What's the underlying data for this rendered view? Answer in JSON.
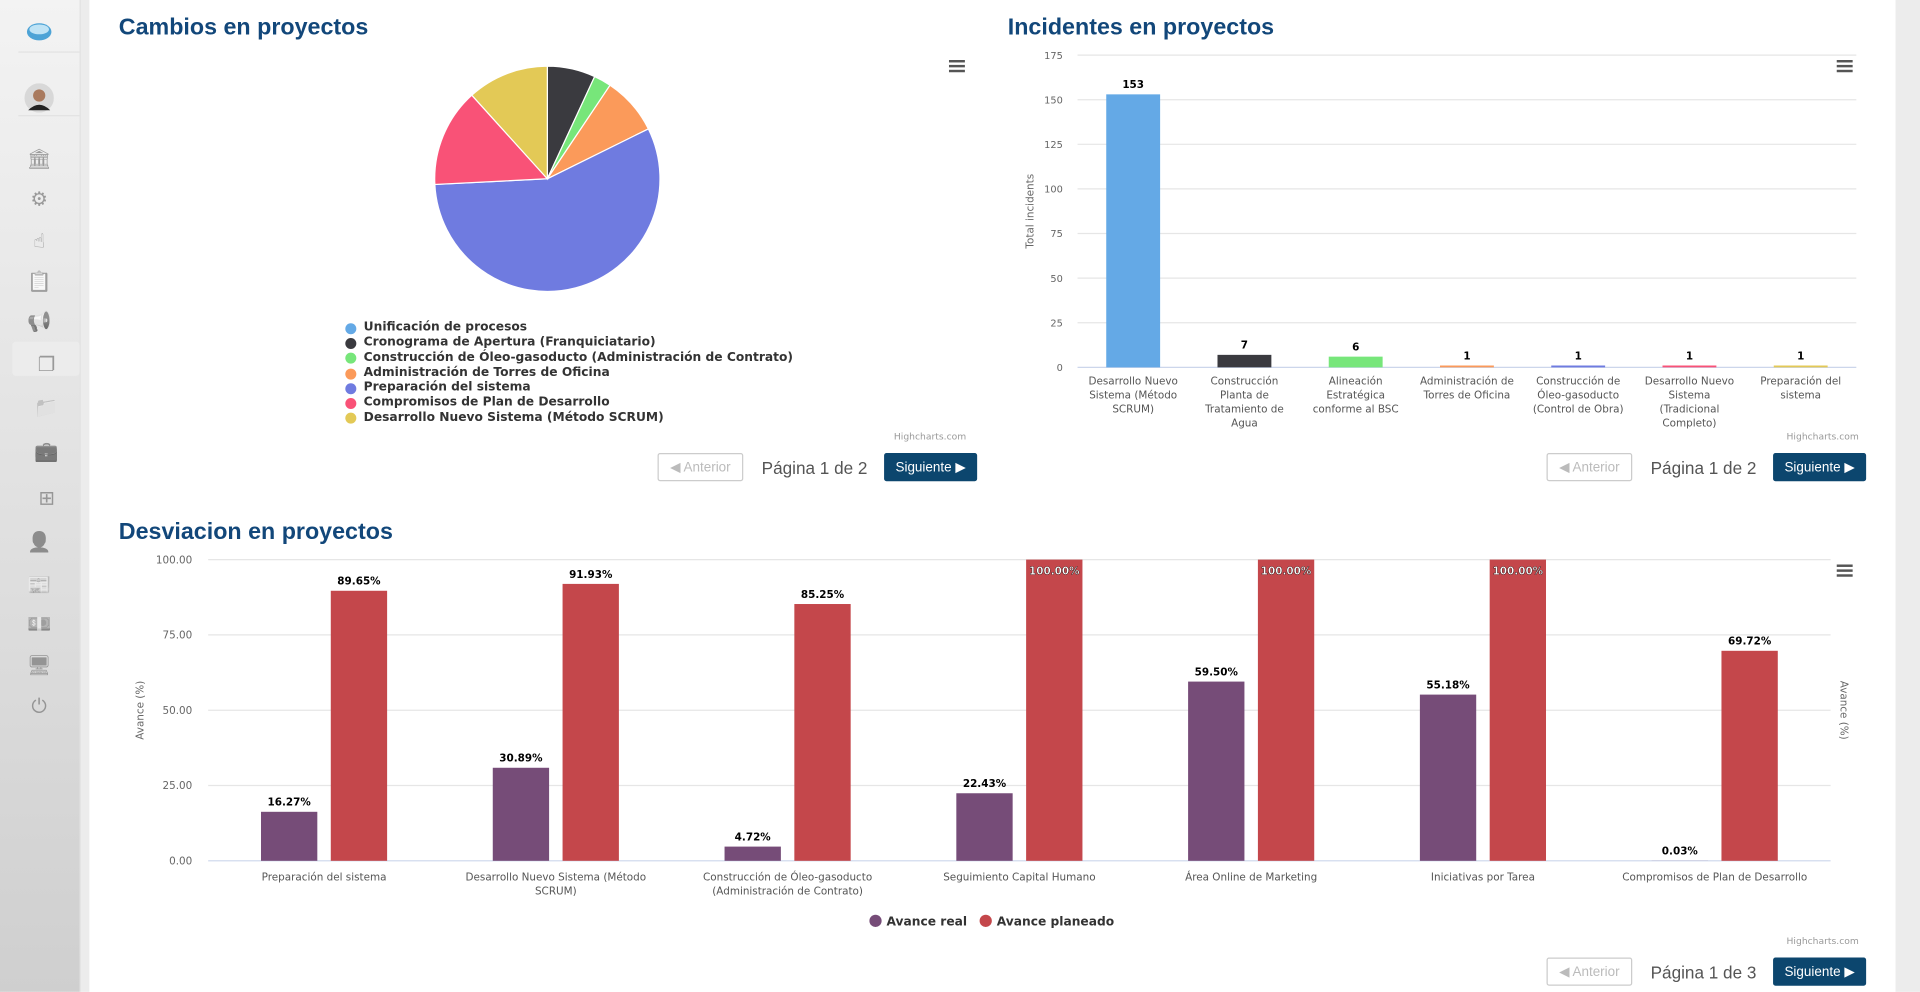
{
  "sidebar": {
    "items": [
      {
        "icon": "bank-icon"
      },
      {
        "icon": "gear-icon"
      },
      {
        "icon": "touch-icon"
      },
      {
        "icon": "clipboard-icon"
      },
      {
        "icon": "megaphone-icon"
      },
      {
        "icon": "copy-icon",
        "active": true
      },
      {
        "icon": "folder-icon"
      },
      {
        "icon": "briefcase-icon"
      },
      {
        "icon": "grid-icon"
      },
      {
        "icon": "user-icon"
      },
      {
        "icon": "newspaper-icon"
      },
      {
        "icon": "money-icon"
      },
      {
        "icon": "monitor-icon"
      },
      {
        "icon": "power-icon"
      }
    ]
  },
  "pagination_labels": {
    "prev": "◀ Anterior",
    "next": "Siguiente ▶"
  },
  "credits": "Highcharts.com",
  "panels": {
    "cambios": {
      "title": "Cambios en proyectos",
      "page": "Página 1 de 2"
    },
    "incidentes": {
      "title": "Incidentes en proyectos",
      "page": "Página 1 de 2"
    },
    "desviacion": {
      "title": "Desviacion en proyectos",
      "page": "Página 1 de 3"
    }
  },
  "chart_data": [
    {
      "type": "pie",
      "title": "Cambios en proyectos",
      "legend_position": "bottom",
      "slices": [
        {
          "name": "Unificación de procesos",
          "value": 0,
          "color": "#64a9e6"
        },
        {
          "name": "Cronograma de Apertura (Franquiciatario)",
          "value": 6.9,
          "color": "#3a3a3f"
        },
        {
          "name": "Construcción de Óleo-gasoducto (Administración de Contrato)",
          "value": 2.5,
          "color": "#77e67a"
        },
        {
          "name": "Administración de Torres de Oficina",
          "value": 8.3,
          "color": "#fb9a5a"
        },
        {
          "name": "Preparación del sistema",
          "value": 56.5,
          "color": "#6f7be0"
        },
        {
          "name": "Compromisos de Plan de Desarrollo",
          "value": 14.1,
          "color": "#f95277"
        },
        {
          "name": "Desarrollo Nuevo Sistema (Método SCRUM)",
          "value": 11.7,
          "color": "#e3c956"
        }
      ]
    },
    {
      "type": "bar",
      "title": "Incidentes en proyectos",
      "ylabel": "Total incidents",
      "ylim": [
        0,
        175
      ],
      "yticks": [
        0,
        25,
        50,
        75,
        100,
        125,
        150,
        175
      ],
      "grid": true,
      "categories": [
        "Desarrollo Nuevo Sistema (Método SCRUM)",
        "Construcción Planta de Tratamiento de Agua",
        "Alineación Estratégica conforme al BSC",
        "Administración de Torres de Oficina",
        "Construcción de Óleo-gasoducto (Control de Obra)",
        "Desarrollo Nuevo Sistema (Tradicional Completo)",
        "Preparación del sistema"
      ],
      "values": [
        153,
        7,
        6,
        1,
        1,
        1,
        1
      ],
      "colors": [
        "#64a9e6",
        "#3a3a3f",
        "#77e67a",
        "#fb9a5a",
        "#6f7be0",
        "#f95277",
        "#e3c956"
      ]
    },
    {
      "type": "bar",
      "title": "Desviacion en proyectos",
      "ylabel": "Avance (%)",
      "ylabel_right": "Avance (%)",
      "ylim": [
        0,
        100
      ],
      "yticks": [
        "0.00",
        "25.00",
        "50.00",
        "75.00",
        "100.00"
      ],
      "grid": true,
      "legend_position": "bottom",
      "categories": [
        "Preparación del sistema",
        "Desarrollo Nuevo Sistema (Método SCRUM)",
        "Construcción de Óleo-gasoducto (Administración de Contrato)",
        "Seguimiento Capital Humano",
        "Área Online de Marketing",
        "Iniciativas por Tarea",
        "Compromisos de Plan de Desarrollo"
      ],
      "series": [
        {
          "name": "Avance real",
          "color": "#764c78",
          "values": [
            16.27,
            30.89,
            4.72,
            22.43,
            59.5,
            55.18,
            0.03
          ]
        },
        {
          "name": "Avance planeado",
          "color": "#c4474b",
          "values": [
            89.65,
            91.93,
            85.25,
            100.0,
            100.0,
            100.0,
            69.72
          ]
        }
      ]
    }
  ]
}
